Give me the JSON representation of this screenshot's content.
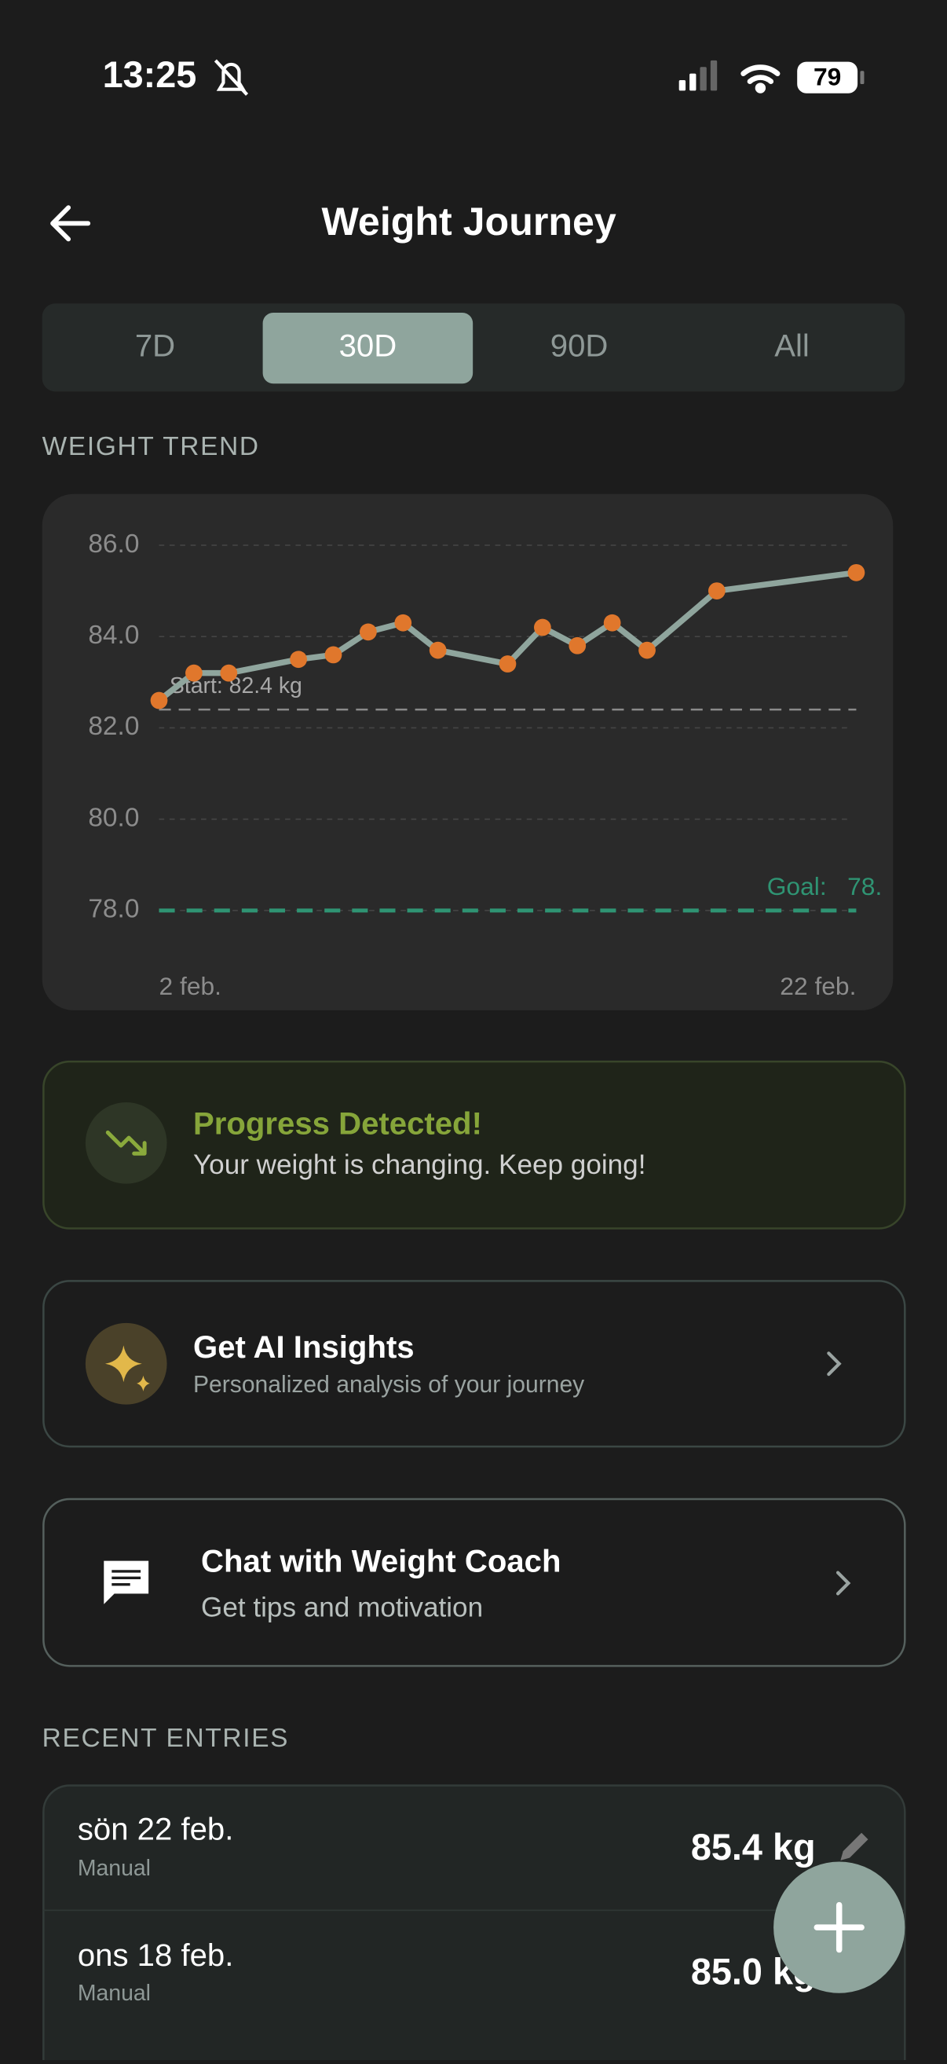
{
  "status_bar": {
    "time": "13:25",
    "battery": "79"
  },
  "header": {
    "title": "Weight Journey"
  },
  "tabs": [
    "7D",
    "30D",
    "90D",
    "All"
  ],
  "sections": {
    "trend": "WEIGHT TREND",
    "recent": "RECENT ENTRIES"
  },
  "chart_data": {
    "type": "line",
    "x": [
      2,
      3,
      4,
      6,
      7,
      8,
      9,
      10,
      12,
      13,
      14,
      15,
      16,
      18,
      22
    ],
    "values": [
      82.6,
      83.2,
      83.2,
      83.5,
      83.6,
      84.1,
      84.3,
      83.7,
      83.4,
      84.2,
      83.8,
      84.3,
      83.7,
      85.0,
      85.4
    ],
    "color": "#8fa59d",
    "marker_color": "#e0772c",
    "xlim": [
      2,
      22
    ],
    "xticks": [
      {
        "value": 2,
        "label": "2 feb."
      },
      {
        "value": 22,
        "label": "22 feb."
      }
    ],
    "ylim": [
      78,
      86
    ],
    "yticks": [
      {
        "value": 78,
        "label": "78.0"
      },
      {
        "value": 80,
        "label": "80.0"
      },
      {
        "value": 82,
        "label": "82.0"
      },
      {
        "value": 84,
        "label": "84.0"
      },
      {
        "value": 86,
        "label": "86.0"
      }
    ],
    "grid": true,
    "start_value": 82.4,
    "start_label": "Start: 82.4 kg",
    "goal_value": 78,
    "goal_label": "Goal:   78.",
    "goal_color": "#2f9473"
  },
  "progress": {
    "title": "Progress Detected!",
    "subtitle": "Your weight is changing. Keep going!"
  },
  "ai_insights": {
    "title": "Get AI Insights",
    "subtitle": "Personalized analysis of your journey"
  },
  "coach": {
    "title": "Chat with Weight Coach",
    "subtitle": "Get tips and motivation"
  },
  "entries": [
    {
      "date": "sön 22 feb.",
      "source": "Manual",
      "weight": "85.4 kg"
    },
    {
      "date": "ons 18 feb.",
      "source": "Manual",
      "weight": "85.0 kg"
    }
  ]
}
